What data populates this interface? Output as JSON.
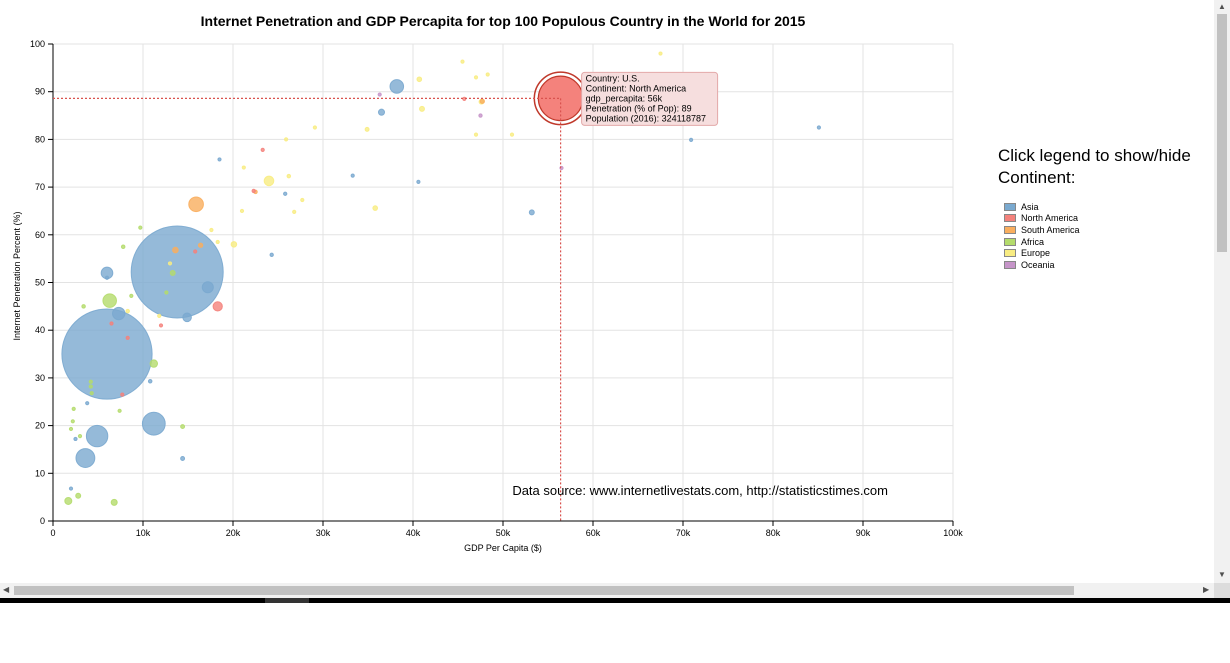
{
  "chart_data": {
    "type": "scatter",
    "title": "Internet Penetration and GDP Percapita for top 100 Populous Country in the World for 2015",
    "xlabel": "GDP Per Capita ($)",
    "ylabel": "Internet Penetration Percent (%)",
    "xlim": [
      0,
      100000
    ],
    "ylim": [
      0,
      100
    ],
    "x_ticks": [
      "0",
      "10k",
      "20k",
      "30k",
      "40k",
      "50k",
      "60k",
      "70k",
      "80k",
      "90k",
      "100k"
    ],
    "y_ticks": [
      "0",
      "10",
      "20",
      "30",
      "40",
      "50",
      "60",
      "70",
      "80",
      "90",
      "100"
    ],
    "grid": true,
    "bubble_size": "Population (2016)",
    "highlighted_point": {
      "crosshair_x": 56400,
      "crosshair_y": 88.6,
      "tooltip_lines": [
        "Country: U.S.",
        "Continent: North America",
        "gdp_percapita: 56k",
        "Penetration (% of Pop): 89",
        "Population (2016): 324118787"
      ]
    },
    "source_text": "Data source: www.internetlivestats.com, http://statisticstimes.com",
    "legend_title": "Click legend to show/hide Continent:",
    "legend_placement": "right",
    "series": [
      {
        "name": "Asia",
        "color": "#7aa9cf",
        "points": [
          {
            "x": 6000,
            "y": 35,
            "size": 1329000000
          },
          {
            "x": 13800,
            "y": 52.2,
            "size": 1382000000
          },
          {
            "x": 11200,
            "y": 20.4,
            "size": 85000000
          },
          {
            "x": 4900,
            "y": 17.8,
            "size": 75000000
          },
          {
            "x": 3600,
            "y": 13.2,
            "size": 58000000
          },
          {
            "x": 38200,
            "y": 91.1,
            "size": 30000000
          },
          {
            "x": 7300,
            "y": 43.5,
            "size": 25000000
          },
          {
            "x": 6000,
            "y": 52,
            "size": 22000000
          },
          {
            "x": 17200,
            "y": 49,
            "size": 20000000
          },
          {
            "x": 14900,
            "y": 42.7,
            "size": 12000000
          },
          {
            "x": 36500,
            "y": 85.7,
            "size": 6000000
          },
          {
            "x": 53200,
            "y": 64.7,
            "size": 4000000
          },
          {
            "x": 14400,
            "y": 13.1,
            "size": 2500000
          },
          {
            "x": 10800,
            "y": 29.3,
            "size": 2000000
          },
          {
            "x": 24300,
            "y": 55.8,
            "size": 1800000
          },
          {
            "x": 33300,
            "y": 72.4,
            "size": 1500000
          },
          {
            "x": 3800,
            "y": 24.7,
            "size": 1500000
          },
          {
            "x": 25800,
            "y": 68.6,
            "size": 1800000
          },
          {
            "x": 18500,
            "y": 75.8,
            "size": 1000000
          },
          {
            "x": 40600,
            "y": 71.1,
            "size": 1000000
          },
          {
            "x": 70900,
            "y": 79.9,
            "size": 800000
          },
          {
            "x": 85100,
            "y": 82.5,
            "size": 800000
          },
          {
            "x": 2500,
            "y": 17.2,
            "size": 1200000
          },
          {
            "x": 6000,
            "y": 51,
            "size": 1000000
          },
          {
            "x": 2000,
            "y": 6.8,
            "size": 1200000
          }
        ]
      },
      {
        "name": "North America",
        "color": "#f4827c",
        "points": [
          {
            "x": 56400,
            "y": 88.6,
            "size": 324118787
          },
          {
            "x": 18300,
            "y": 45,
            "size": 14000000
          },
          {
            "x": 45700,
            "y": 88.5,
            "size": 1500000
          },
          {
            "x": 22300,
            "y": 69.2,
            "size": 1800000
          },
          {
            "x": 12000,
            "y": 41,
            "size": 1200000
          },
          {
            "x": 8300,
            "y": 38.4,
            "size": 900000
          },
          {
            "x": 7700,
            "y": 26.5,
            "size": 1100000
          },
          {
            "x": 15800,
            "y": 56.5,
            "size": 1000000
          },
          {
            "x": 6500,
            "y": 41.4,
            "size": 900000
          },
          {
            "x": 23300,
            "y": 77.8,
            "size": 800000
          }
        ]
      },
      {
        "name": "South America",
        "color": "#f9ae5e",
        "points": [
          {
            "x": 15900,
            "y": 66.4,
            "size": 35000000
          },
          {
            "x": 13600,
            "y": 56.8,
            "size": 5000000
          },
          {
            "x": 16400,
            "y": 57.8,
            "size": 3000000
          },
          {
            "x": 47700,
            "y": 88,
            "size": 3000000
          },
          {
            "x": 22500,
            "y": 69,
            "size": 2000000
          }
        ]
      },
      {
        "name": "Africa",
        "color": "#b4db6c",
        "points": [
          {
            "x": 6300,
            "y": 46.2,
            "size": 30000000
          },
          {
            "x": 11200,
            "y": 33,
            "size": 9000000
          },
          {
            "x": 1700,
            "y": 4.2,
            "size": 8000000
          },
          {
            "x": 6800,
            "y": 3.9,
            "size": 6000000
          },
          {
            "x": 2800,
            "y": 5.3,
            "size": 4000000
          },
          {
            "x": 13300,
            "y": 52,
            "size": 4000000
          },
          {
            "x": 14400,
            "y": 19.8,
            "size": 2500000
          },
          {
            "x": 3400,
            "y": 45,
            "size": 2000000
          },
          {
            "x": 7800,
            "y": 57.5,
            "size": 2000000
          },
          {
            "x": 4200,
            "y": 28.2,
            "size": 1800000
          },
          {
            "x": 7400,
            "y": 23.1,
            "size": 1500000
          },
          {
            "x": 2000,
            "y": 19.3,
            "size": 1500000
          },
          {
            "x": 2300,
            "y": 23.5,
            "size": 1000000
          },
          {
            "x": 2200,
            "y": 20.9,
            "size": 1000000
          },
          {
            "x": 3000,
            "y": 17.8,
            "size": 1000000
          },
          {
            "x": 4300,
            "y": 26.8,
            "size": 1200000
          },
          {
            "x": 4200,
            "y": 29.2,
            "size": 900000
          },
          {
            "x": 12600,
            "y": 47.9,
            "size": 1000000
          },
          {
            "x": 8700,
            "y": 47.2,
            "size": 900000
          },
          {
            "x": 9700,
            "y": 61.5,
            "size": 900000
          }
        ]
      },
      {
        "name": "Europe",
        "color": "#f8ec82",
        "points": [
          {
            "x": 24000,
            "y": 71.3,
            "size": 15000000
          },
          {
            "x": 20100,
            "y": 58,
            "size": 5000000
          },
          {
            "x": 41000,
            "y": 86.4,
            "size": 4000000
          },
          {
            "x": 40700,
            "y": 92.6,
            "size": 3500000
          },
          {
            "x": 47600,
            "y": 87.9,
            "size": 3500000
          },
          {
            "x": 35800,
            "y": 65.6,
            "size": 3500000
          },
          {
            "x": 34900,
            "y": 82.1,
            "size": 2500000
          },
          {
            "x": 26200,
            "y": 72.3,
            "size": 2000000
          },
          {
            "x": 8300,
            "y": 44,
            "size": 2000000
          },
          {
            "x": 45500,
            "y": 96.3,
            "size": 1000000
          },
          {
            "x": 48300,
            "y": 93.6,
            "size": 1000000
          },
          {
            "x": 47000,
            "y": 93,
            "size": 1000000
          },
          {
            "x": 29100,
            "y": 82.5,
            "size": 900000
          },
          {
            "x": 26800,
            "y": 64.8,
            "size": 900000
          },
          {
            "x": 21000,
            "y": 65,
            "size": 900000
          },
          {
            "x": 27700,
            "y": 67.3,
            "size": 900000
          },
          {
            "x": 21200,
            "y": 74.1,
            "size": 900000
          },
          {
            "x": 67500,
            "y": 98,
            "size": 800000
          },
          {
            "x": 25900,
            "y": 80,
            "size": 800000
          },
          {
            "x": 17600,
            "y": 61,
            "size": 1000000
          },
          {
            "x": 51000,
            "y": 81,
            "size": 800000
          },
          {
            "x": 47000,
            "y": 81,
            "size": 800000
          },
          {
            "x": 18300,
            "y": 58.5,
            "size": 800000
          },
          {
            "x": 13000,
            "y": 54,
            "size": 800000
          },
          {
            "x": 11800,
            "y": 43,
            "size": 800000
          }
        ]
      },
      {
        "name": "Oceania",
        "color": "#c695c9",
        "points": [
          {
            "x": 47500,
            "y": 85,
            "size": 1800000
          },
          {
            "x": 36300,
            "y": 89.4,
            "size": 800000
          },
          {
            "x": 56500,
            "y": 74,
            "size": 700000
          }
        ]
      }
    ]
  }
}
